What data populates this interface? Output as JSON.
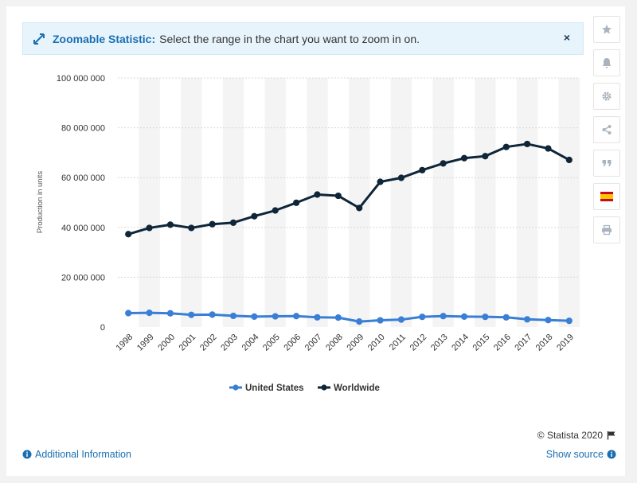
{
  "banner": {
    "title": "Zoomable Statistic:",
    "text": "Select the range in the chart you want to zoom in on.",
    "close": "×"
  },
  "sidebar": {
    "icons": [
      "star-icon",
      "bell-icon",
      "gear-icon",
      "share-icon",
      "quote-icon",
      "spanish-flag-icon",
      "print-icon"
    ]
  },
  "footer": {
    "credit": "© Statista 2020",
    "additional_info": "Additional Information",
    "show_source": "Show source"
  },
  "colors": {
    "us": "#3a7fd6",
    "world": "#0f2538",
    "band": "#f4f4f4",
    "grid": "#d8d8d8",
    "link": "#1a6fb3"
  },
  "chart_data": {
    "type": "line",
    "title": "",
    "xlabel": "",
    "ylabel": "Production in units",
    "categories": [
      "1998",
      "1999",
      "2000",
      "2001",
      "2002",
      "2003",
      "2004",
      "2005",
      "2006",
      "2007",
      "2008",
      "2009",
      "2010",
      "2011",
      "2012",
      "2013",
      "2014",
      "2015",
      "2016",
      "2017",
      "2018",
      "2019"
    ],
    "ylim": [
      0,
      100000000
    ],
    "yticks": [
      "0",
      "20 000 000",
      "40 000 000",
      "60 000 000",
      "80 000 000",
      "100 000 000"
    ],
    "series": [
      {
        "name": "United States",
        "values": [
          5600000,
          5700000,
          5500000,
          4900000,
          5000000,
          4500000,
          4200000,
          4300000,
          4400000,
          3900000,
          3800000,
          2200000,
          2700000,
          3000000,
          4100000,
          4400000,
          4200000,
          4100000,
          3900000,
          3100000,
          2800000,
          2500000
        ]
      },
      {
        "name": "Worldwide",
        "values": [
          37300000,
          39800000,
          41100000,
          39800000,
          41300000,
          41900000,
          44500000,
          46800000,
          49900000,
          53200000,
          52700000,
          47800000,
          58300000,
          59900000,
          63000000,
          65700000,
          67800000,
          68600000,
          72300000,
          73500000,
          71700000,
          67100000
        ]
      }
    ],
    "grid": true,
    "legend_position": "bottom-center"
  }
}
